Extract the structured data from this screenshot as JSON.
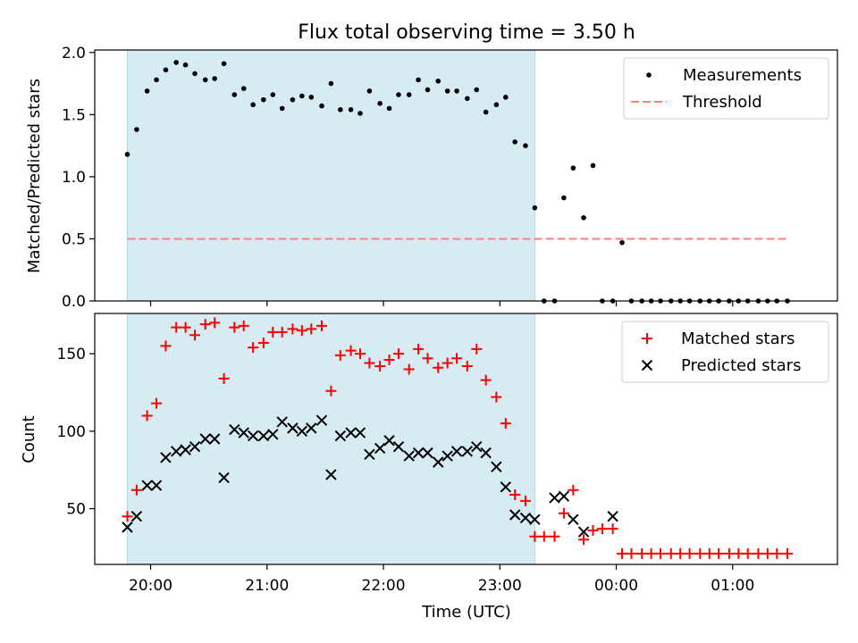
{
  "chart_data": [
    {
      "type": "scatter",
      "title": "Flux total observing time = 3.50 h",
      "xlabel": "",
      "ylabel": "Matched/Predicted stars",
      "x_axis": "time (UTC, hours since 19:00)",
      "xlim": [
        0.52,
        6.9
      ],
      "ylim": [
        0,
        2.02
      ],
      "yticks": [
        0.0,
        0.5,
        1.0,
        1.5,
        2.0
      ],
      "ytick_labels": [
        "0.0",
        "0.5",
        "1.0",
        "1.5",
        "2.0"
      ],
      "xtick_labels_shown": false,
      "shaded_interval": [
        0.8,
        4.3
      ],
      "shade_color": "#add8e6",
      "legend_position": "upper right",
      "series": [
        {
          "name": "Measurements",
          "marker": "dot",
          "color": "#000000",
          "x": [
            0.8,
            0.88,
            0.97,
            1.05,
            1.13,
            1.22,
            1.3,
            1.38,
            1.47,
            1.55,
            1.63,
            1.72,
            1.8,
            1.88,
            1.97,
            2.05,
            2.13,
            2.22,
            2.3,
            2.38,
            2.47,
            2.55,
            2.63,
            2.72,
            2.8,
            2.88,
            2.97,
            3.05,
            3.13,
            3.22,
            3.3,
            3.38,
            3.47,
            3.55,
            3.63,
            3.72,
            3.8,
            3.88,
            3.97,
            4.05,
            4.13,
            4.22,
            4.3,
            4.38,
            4.47,
            4.55,
            4.63,
            4.72,
            4.8,
            4.88,
            4.97,
            5.05,
            5.13,
            5.22,
            5.3,
            5.38,
            5.47,
            5.55,
            5.63,
            5.72,
            5.8,
            5.88,
            5.97,
            6.05,
            6.13,
            6.22,
            6.3,
            6.38,
            6.47
          ],
          "y": [
            1.18,
            1.38,
            1.69,
            1.78,
            1.86,
            1.92,
            1.9,
            1.83,
            1.78,
            1.79,
            1.91,
            1.66,
            1.71,
            1.58,
            1.62,
            1.66,
            1.55,
            1.62,
            1.65,
            1.64,
            1.57,
            1.75,
            1.54,
            1.54,
            1.51,
            1.69,
            1.59,
            1.55,
            1.66,
            1.66,
            1.78,
            1.7,
            1.77,
            1.69,
            1.69,
            1.63,
            1.7,
            1.52,
            1.58,
            1.64,
            1.28,
            1.25,
            0.75,
            0.0,
            0.0,
            0.83,
            1.07,
            0.67,
            1.09,
            0.0,
            0.0,
            0.47,
            0.0,
            0.0,
            0.0,
            0.0,
            0.0,
            0.0,
            0.0,
            0.0,
            0.0,
            0.0,
            0.0,
            0.0,
            0.0,
            0.0,
            0.0,
            0.0,
            0.0
          ]
        },
        {
          "name": "Threshold",
          "type": "line",
          "style": "dashed",
          "color": "#ff7f7f",
          "x": [
            0.8,
            6.47
          ],
          "y": [
            0.5,
            0.5
          ]
        }
      ]
    },
    {
      "type": "scatter",
      "title": "",
      "xlabel": "Time (UTC)",
      "ylabel": "Count",
      "x_axis": "time (UTC, hours since 19:00)",
      "xlim": [
        0.52,
        6.9
      ],
      "ylim": [
        14,
        176
      ],
      "yticks": [
        50,
        100,
        150
      ],
      "ytick_labels": [
        "50",
        "100",
        "150"
      ],
      "xticks": [
        1,
        2,
        3,
        4,
        5,
        6
      ],
      "xtick_labels": [
        "20:00",
        "21:00",
        "22:00",
        "23:00",
        "00:00",
        "01:00"
      ],
      "shaded_interval": [
        0.8,
        4.3
      ],
      "shade_color": "#add8e6",
      "legend_position": "upper right",
      "series": [
        {
          "name": "Matched stars",
          "marker": "plus",
          "color": "#ff0000",
          "x": [
            0.8,
            0.88,
            0.97,
            1.05,
            1.13,
            1.22,
            1.3,
            1.38,
            1.47,
            1.55,
            1.63,
            1.72,
            1.8,
            1.88,
            1.97,
            2.05,
            2.13,
            2.22,
            2.3,
            2.38,
            2.47,
            2.55,
            2.63,
            2.72,
            2.8,
            2.88,
            2.97,
            3.05,
            3.13,
            3.22,
            3.3,
            3.38,
            3.47,
            3.55,
            3.63,
            3.72,
            3.8,
            3.88,
            3.97,
            4.05,
            4.13,
            4.22,
            4.3,
            4.38,
            4.47,
            4.55,
            4.63,
            4.72,
            4.8,
            4.88,
            4.97,
            5.05,
            5.13,
            5.22,
            5.3,
            5.38,
            5.47,
            5.55,
            5.63,
            5.72,
            5.8,
            5.88,
            5.97,
            6.05,
            6.13,
            6.22,
            6.3,
            6.38,
            6.47
          ],
          "y": [
            45,
            62,
            110,
            118,
            155,
            167,
            167,
            162,
            169,
            170,
            134,
            167,
            168,
            154,
            157,
            164,
            164,
            166,
            165,
            166,
            168,
            126,
            149,
            152,
            150,
            144,
            142,
            146,
            150,
            140,
            153,
            147,
            141,
            144,
            147,
            142,
            153,
            133,
            122,
            105,
            59,
            55,
            32,
            32,
            32,
            47,
            62,
            30,
            36,
            37,
            37,
            21,
            21,
            21,
            21,
            21,
            21,
            21,
            21,
            21,
            21,
            21,
            21,
            21,
            21,
            21,
            21,
            21,
            21
          ]
        },
        {
          "name": "Predicted stars",
          "marker": "x",
          "color": "#000000",
          "x": [
            0.8,
            0.88,
            0.97,
            1.05,
            1.13,
            1.22,
            1.3,
            1.38,
            1.47,
            1.55,
            1.63,
            1.72,
            1.8,
            1.88,
            1.97,
            2.05,
            2.13,
            2.22,
            2.3,
            2.38,
            2.47,
            2.55,
            2.63,
            2.72,
            2.8,
            2.88,
            2.97,
            3.05,
            3.13,
            3.22,
            3.3,
            3.38,
            3.47,
            3.55,
            3.63,
            3.72,
            3.8,
            3.88,
            3.97,
            4.05,
            4.13,
            4.22,
            4.3,
            4.47,
            4.55,
            4.63,
            4.72,
            4.97
          ],
          "y": [
            38,
            45,
            65,
            65,
            83,
            87,
            88,
            90,
            95,
            95,
            70,
            101,
            99,
            97,
            97,
            98,
            106,
            102,
            100,
            102,
            107,
            72,
            97,
            99,
            99,
            85,
            89,
            94,
            90,
            84,
            86,
            86,
            80,
            84,
            87,
            87,
            90,
            86,
            77,
            64,
            46,
            44,
            43,
            57,
            58,
            43,
            35,
            45
          ]
        }
      ]
    }
  ]
}
